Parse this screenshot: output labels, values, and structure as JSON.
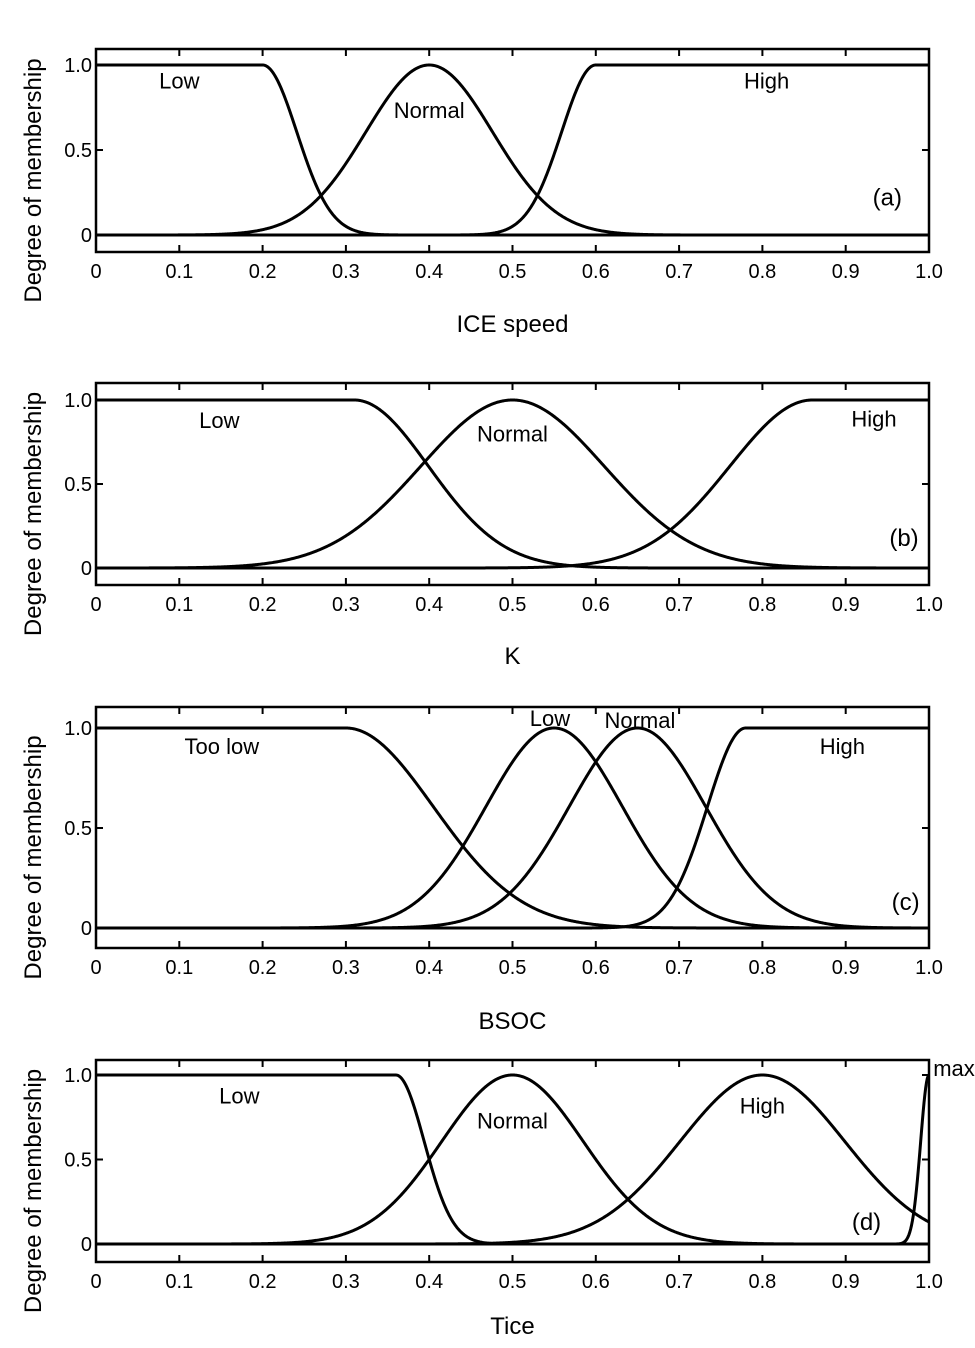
{
  "chart_data": [
    {
      "type": "line",
      "panel": "(a)",
      "xlabel": "ICE speed",
      "ylabel": "Degree of membership",
      "xlim": [
        0,
        1
      ],
      "ylim": [
        -0.1,
        1.1
      ],
      "xticks": [
        "0",
        "0.1",
        "0.2",
        "0.3",
        "0.4",
        "0.5",
        "0.6",
        "0.7",
        "0.8",
        "0.9",
        "1.0"
      ],
      "yticks": [
        {
          "v": 0,
          "label": "0"
        },
        {
          "v": 0.5,
          "label": "0.5"
        },
        {
          "v": 1,
          "label": "1.0"
        }
      ],
      "series": [
        {
          "name": "Low",
          "shape": "left-shoulder",
          "edge": 0.2,
          "sigma": 0.041,
          "label_at": [
            0.1,
            0.91
          ]
        },
        {
          "name": "Normal",
          "shape": "gaussian",
          "center": 0.4,
          "sigma": 0.076,
          "label_at": [
            0.4,
            0.735
          ]
        },
        {
          "name": "High",
          "shape": "right-shoulder",
          "edge": 0.6,
          "sigma": 0.041,
          "label_at": [
            0.805,
            0.91
          ]
        }
      ],
      "panel_label_at": [
        0.95,
        0.22
      ]
    },
    {
      "type": "line",
      "panel": "(b)",
      "xlabel": "K",
      "ylabel": "Degree of membership",
      "xlim": [
        0,
        1
      ],
      "ylim": [
        -0.1,
        1.1
      ],
      "xticks": [
        "0",
        "0.1",
        "0.2",
        "0.3",
        "0.4",
        "0.5",
        "0.6",
        "0.7",
        "0.8",
        "0.9",
        "1.0"
      ],
      "yticks": [
        {
          "v": 0,
          "label": "0"
        },
        {
          "v": 0.5,
          "label": "0.5"
        },
        {
          "v": 1,
          "label": "1.0"
        }
      ],
      "series": [
        {
          "name": "Low",
          "shape": "left-shoulder",
          "edge": 0.31,
          "sigma": 0.089,
          "label_at": [
            0.148,
            0.88
          ]
        },
        {
          "name": "Normal",
          "shape": "gaussian",
          "center": 0.5,
          "sigma": 0.11,
          "label_at": [
            0.5,
            0.8
          ]
        },
        {
          "name": "High",
          "shape": "right-shoulder",
          "edge": 0.86,
          "sigma": 0.099,
          "label_at": [
            0.934,
            0.89
          ]
        }
      ],
      "panel_label_at": [
        0.97,
        0.18
      ]
    },
    {
      "type": "line",
      "panel": "(c)",
      "xlabel": "BSOC",
      "ylabel": "Degree of membership",
      "xlim": [
        0,
        1
      ],
      "ylim": [
        -0.1,
        1.1
      ],
      "xticks": [
        "0",
        "0.1",
        "0.2",
        "0.3",
        "0.4",
        "0.5",
        "0.6",
        "0.7",
        "0.8",
        "0.9",
        "1.0"
      ],
      "yticks": [
        {
          "v": 0,
          "label": "0"
        },
        {
          "v": 0.5,
          "label": "0.5"
        },
        {
          "v": 1,
          "label": "1.0"
        }
      ],
      "series": [
        {
          "name": "Too low",
          "shape": "left-shoulder",
          "edge": 0.3,
          "sigma": 0.105,
          "label_at": [
            0.151,
            0.91
          ]
        },
        {
          "name": "Low",
          "shape": "gaussian",
          "center": 0.55,
          "sigma": 0.082,
          "label_at": [
            0.545,
            1.05
          ]
        },
        {
          "name": "Normal",
          "shape": "gaussian",
          "center": 0.65,
          "sigma": 0.082,
          "label_at": [
            0.653,
            1.04
          ]
        },
        {
          "name": "High",
          "shape": "right-shoulder",
          "edge": 0.78,
          "sigma": 0.046,
          "label_at": [
            0.896,
            0.91
          ]
        }
      ],
      "panel_label_at": [
        0.972,
        0.13
      ]
    },
    {
      "type": "line",
      "panel": "(d)",
      "xlabel": "Tice",
      "ylabel": "Degree of membership",
      "xlim": [
        0,
        1
      ],
      "ylim": [
        -0.1,
        1.1
      ],
      "xticks": [
        "0",
        "0.1",
        "0.2",
        "0.3",
        "0.4",
        "0.5",
        "0.6",
        "0.7",
        "0.8",
        "0.9",
        "1.0"
      ],
      "yticks": [
        {
          "v": 0,
          "label": "0"
        },
        {
          "v": 0.5,
          "label": "0.5"
        },
        {
          "v": 1,
          "label": "1.0"
        }
      ],
      "series": [
        {
          "name": "Low",
          "shape": "left-shoulder",
          "edge": 0.36,
          "sigma": 0.034,
          "label_at": [
            0.172,
            0.88
          ]
        },
        {
          "name": "Normal",
          "shape": "gaussian",
          "center": 0.5,
          "sigma": 0.085,
          "label_at": [
            0.5,
            0.73
          ]
        },
        {
          "name": "High",
          "shape": "gaussian",
          "center": 0.8,
          "sigma": 0.099,
          "label_at": [
            0.8,
            0.82
          ]
        },
        {
          "name": "max",
          "shape": "gaussian",
          "center": 1.0,
          "sigma": 0.01,
          "label_at": [
            1.03,
            1.04
          ]
        }
      ],
      "panel_label_at": [
        0.925,
        0.13
      ]
    }
  ]
}
